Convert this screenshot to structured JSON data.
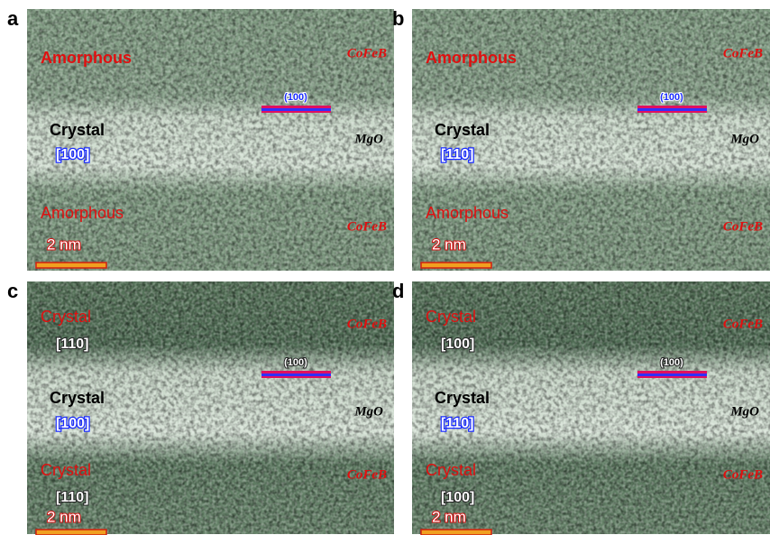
{
  "panels": [
    {
      "label": "a",
      "top_phase": "Amorphous",
      "top_material": "CoFeB",
      "plane": "(100)",
      "middle_phase": "Crystal",
      "middle_axis": "[100]",
      "middle_material": "MgO",
      "bottom_phase": "Amorphous",
      "bottom_material": "CoFeB",
      "scale": "2 nm"
    },
    {
      "label": "b",
      "top_phase": "Amorphous",
      "top_material": "CoFeB",
      "plane": "(100)",
      "middle_phase": "Crystal",
      "middle_axis": "[110]",
      "middle_material": "MgO",
      "bottom_phase": "Amorphous",
      "bottom_material": "CoFeB",
      "scale": "2 nm"
    },
    {
      "label": "c",
      "top_phase": "Crystal",
      "top_axis": "[110]",
      "top_material": "CoFeB",
      "plane": "(100)",
      "middle_phase": "Crystal",
      "middle_axis": "[100]",
      "middle_material": "MgO",
      "bottom_phase": "Crystal",
      "bottom_axis": "[110]",
      "bottom_material": "CoFeB",
      "scale": "2 nm"
    },
    {
      "label": "d",
      "top_phase": "Crystal",
      "top_axis": "[100]",
      "top_material": "CoFeB",
      "plane": "(100)",
      "middle_phase": "Crystal",
      "middle_axis": "[110]",
      "middle_material": "MgO",
      "bottom_phase": "Crystal",
      "bottom_axis": "[100]",
      "bottom_material": "CoFeB",
      "scale": "2 nm"
    }
  ]
}
